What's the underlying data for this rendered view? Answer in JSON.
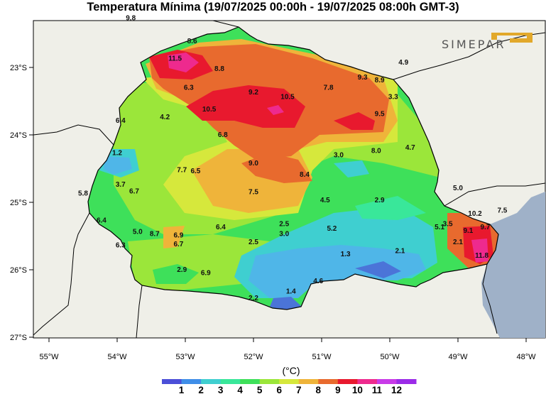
{
  "title": "Temperatura Mínima (19/07/2025 00:00h - 19/07/2025 08:00h GMT-3)",
  "logo": {
    "text": "SIMEPAR",
    "accent_color": "#e2a82a"
  },
  "unit": "(°C)",
  "colors": {
    "land_outside": "#efefe8",
    "ocean": "#9fb1c8",
    "border": "#000000"
  },
  "axes": {
    "lat_ticks": [
      "23°S",
      "24°S",
      "25°S",
      "26°S",
      "27°S"
    ],
    "lon_ticks": [
      "55°W",
      "54°W",
      "53°W",
      "52°W",
      "51°W",
      "50°W",
      "49°W",
      "48°W"
    ]
  },
  "colorbar": {
    "ticks": [
      "1",
      "2",
      "3",
      "4",
      "5",
      "6",
      "7",
      "8",
      "9",
      "10",
      "11",
      "12"
    ],
    "colors": [
      "#4b4fd8",
      "#3f8ee8",
      "#3fcfd0",
      "#39e79a",
      "#3ee05a",
      "#9be63a",
      "#d6e83c",
      "#efb43a",
      "#e86a2e",
      "#e8192e",
      "#ee2a8e",
      "#c83ae8",
      "#9b2be8"
    ]
  },
  "values": [
    {
      "text": "9.8",
      "lon": -53.8,
      "lat": -22.3
    },
    {
      "text": "8.6",
      "lon": -52.9,
      "lat": -22.64
    },
    {
      "text": "11.5",
      "lon": -53.15,
      "lat": -22.9
    },
    {
      "text": "8.8",
      "lon": -52.5,
      "lat": -23.05
    },
    {
      "text": "6.3",
      "lon": -52.95,
      "lat": -23.33
    },
    {
      "text": "9.2",
      "lon": -52.0,
      "lat": -23.4
    },
    {
      "text": "10.5",
      "lon": -51.5,
      "lat": -23.47
    },
    {
      "text": "7.8",
      "lon": -50.9,
      "lat": -23.33
    },
    {
      "text": "9.3",
      "lon": -50.4,
      "lat": -23.18
    },
    {
      "text": "4.9",
      "lon": -49.8,
      "lat": -22.96
    },
    {
      "text": "8.9",
      "lon": -50.15,
      "lat": -23.22
    },
    {
      "text": "3.3",
      "lon": -49.95,
      "lat": -23.47
    },
    {
      "text": "10.5",
      "lon": -52.65,
      "lat": -23.65
    },
    {
      "text": "9.5",
      "lon": -50.15,
      "lat": -23.72
    },
    {
      "text": "4.2",
      "lon": -53.3,
      "lat": -23.77
    },
    {
      "text": "6.4",
      "lon": -53.95,
      "lat": -23.82
    },
    {
      "text": "6.8",
      "lon": -52.45,
      "lat": -24.03
    },
    {
      "text": "1.2",
      "lon": -54.0,
      "lat": -24.3
    },
    {
      "text": "8.0",
      "lon": -50.2,
      "lat": -24.27
    },
    {
      "text": "4.7",
      "lon": -49.7,
      "lat": -24.22
    },
    {
      "text": "3.0",
      "lon": -50.75,
      "lat": -24.33
    },
    {
      "text": "9.0",
      "lon": -52.0,
      "lat": -24.45
    },
    {
      "text": "7.7",
      "lon": -53.05,
      "lat": -24.55
    },
    {
      "text": "6.5",
      "lon": -52.85,
      "lat": -24.57
    },
    {
      "text": "8.4",
      "lon": -51.25,
      "lat": -24.62
    },
    {
      "text": "3.7",
      "lon": -53.95,
      "lat": -24.77
    },
    {
      "text": "6.7",
      "lon": -53.75,
      "lat": -24.87
    },
    {
      "text": "5.8",
      "lon": -54.5,
      "lat": -24.9
    },
    {
      "text": "7.5",
      "lon": -52.0,
      "lat": -24.88
    },
    {
      "text": "5.0",
      "lon": -49.0,
      "lat": -24.82
    },
    {
      "text": "4.5",
      "lon": -50.95,
      "lat": -25.0
    },
    {
      "text": "2.9",
      "lon": -50.15,
      "lat": -25.0
    },
    {
      "text": "6.4",
      "lon": -54.23,
      "lat": -25.3
    },
    {
      "text": "10.2",
      "lon": -48.75,
      "lat": -25.2
    },
    {
      "text": "7.5",
      "lon": -48.35,
      "lat": -25.15
    },
    {
      "text": "2.5",
      "lon": -51.55,
      "lat": -25.35
    },
    {
      "text": "6.4",
      "lon": -52.48,
      "lat": -25.4
    },
    {
      "text": "5.2",
      "lon": -50.85,
      "lat": -25.42
    },
    {
      "text": "3.5",
      "lon": -49.15,
      "lat": -25.35
    },
    {
      "text": "5.1",
      "lon": -49.27,
      "lat": -25.4
    },
    {
      "text": "9.7",
      "lon": -48.6,
      "lat": -25.4
    },
    {
      "text": "9.1",
      "lon": -48.85,
      "lat": -25.45
    },
    {
      "text": "5.0",
      "lon": -53.7,
      "lat": -25.47
    },
    {
      "text": "8.7",
      "lon": -53.45,
      "lat": -25.5
    },
    {
      "text": "6.9",
      "lon": -53.1,
      "lat": -25.52
    },
    {
      "text": "3.0",
      "lon": -51.55,
      "lat": -25.5
    },
    {
      "text": "6.3",
      "lon": -53.95,
      "lat": -25.67
    },
    {
      "text": "6.7",
      "lon": -53.1,
      "lat": -25.65
    },
    {
      "text": "2.5",
      "lon": -52.0,
      "lat": -25.62
    },
    {
      "text": "2.1",
      "lon": -49.0,
      "lat": -25.62
    },
    {
      "text": "1.3",
      "lon": -50.65,
      "lat": -25.8
    },
    {
      "text": "2.1",
      "lon": -49.85,
      "lat": -25.75
    },
    {
      "text": "11.8",
      "lon": -48.65,
      "lat": -25.82
    },
    {
      "text": "2.9",
      "lon": -53.05,
      "lat": -26.03
    },
    {
      "text": "6.9",
      "lon": -52.7,
      "lat": -26.08
    },
    {
      "text": "4.6",
      "lon": -51.05,
      "lat": -26.2
    },
    {
      "text": "1.4",
      "lon": -51.45,
      "lat": -26.35
    },
    {
      "text": "2.2",
      "lon": -52.0,
      "lat": -26.45
    }
  ]
}
